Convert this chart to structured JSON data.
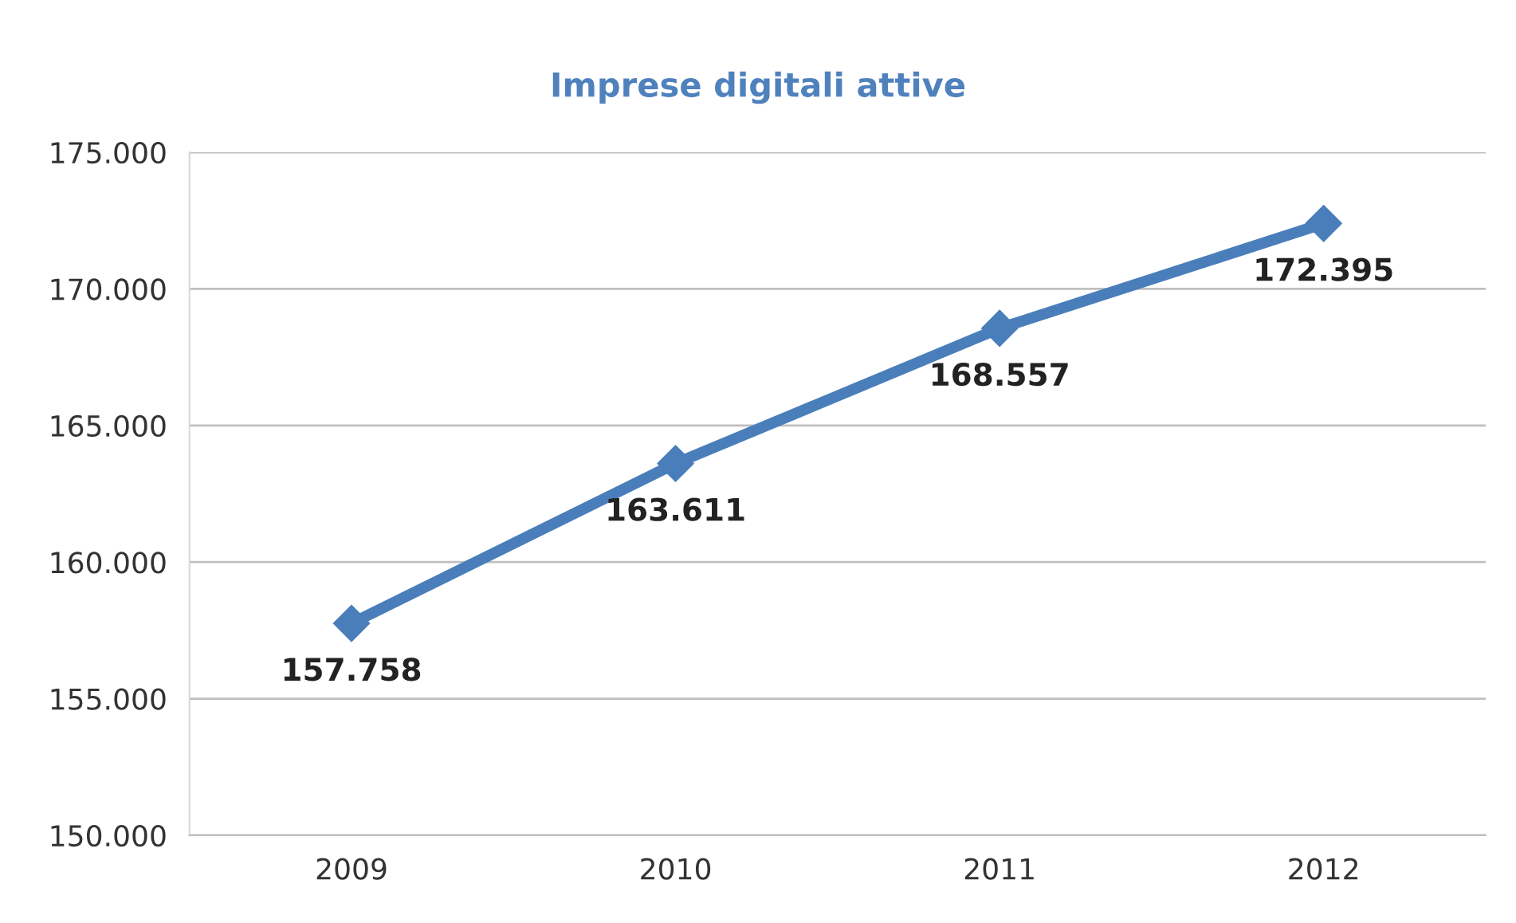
{
  "chart_data": {
    "type": "line",
    "title": "Imprese digitali attive",
    "categories": [
      "2009",
      "2010",
      "2011",
      "2012"
    ],
    "series": [
      {
        "color": "#4a7ebb",
        "values": [
          157758,
          163611,
          168557,
          172395
        ],
        "value_labels": [
          "157.758",
          "163.611",
          "168.557",
          "172.395"
        ]
      }
    ],
    "ylim": [
      150000,
      175000
    ],
    "yticks": [
      {
        "value": 150000,
        "label": "150.000"
      },
      {
        "value": 155000,
        "label": "155.000"
      },
      {
        "value": 160000,
        "label": "160.000"
      },
      {
        "value": 165000,
        "label": "165.000"
      },
      {
        "value": 170000,
        "label": "170.000"
      },
      {
        "value": 175000,
        "label": "175.000"
      }
    ],
    "grid": "y",
    "marker": "diamond",
    "line_style": "solid"
  }
}
